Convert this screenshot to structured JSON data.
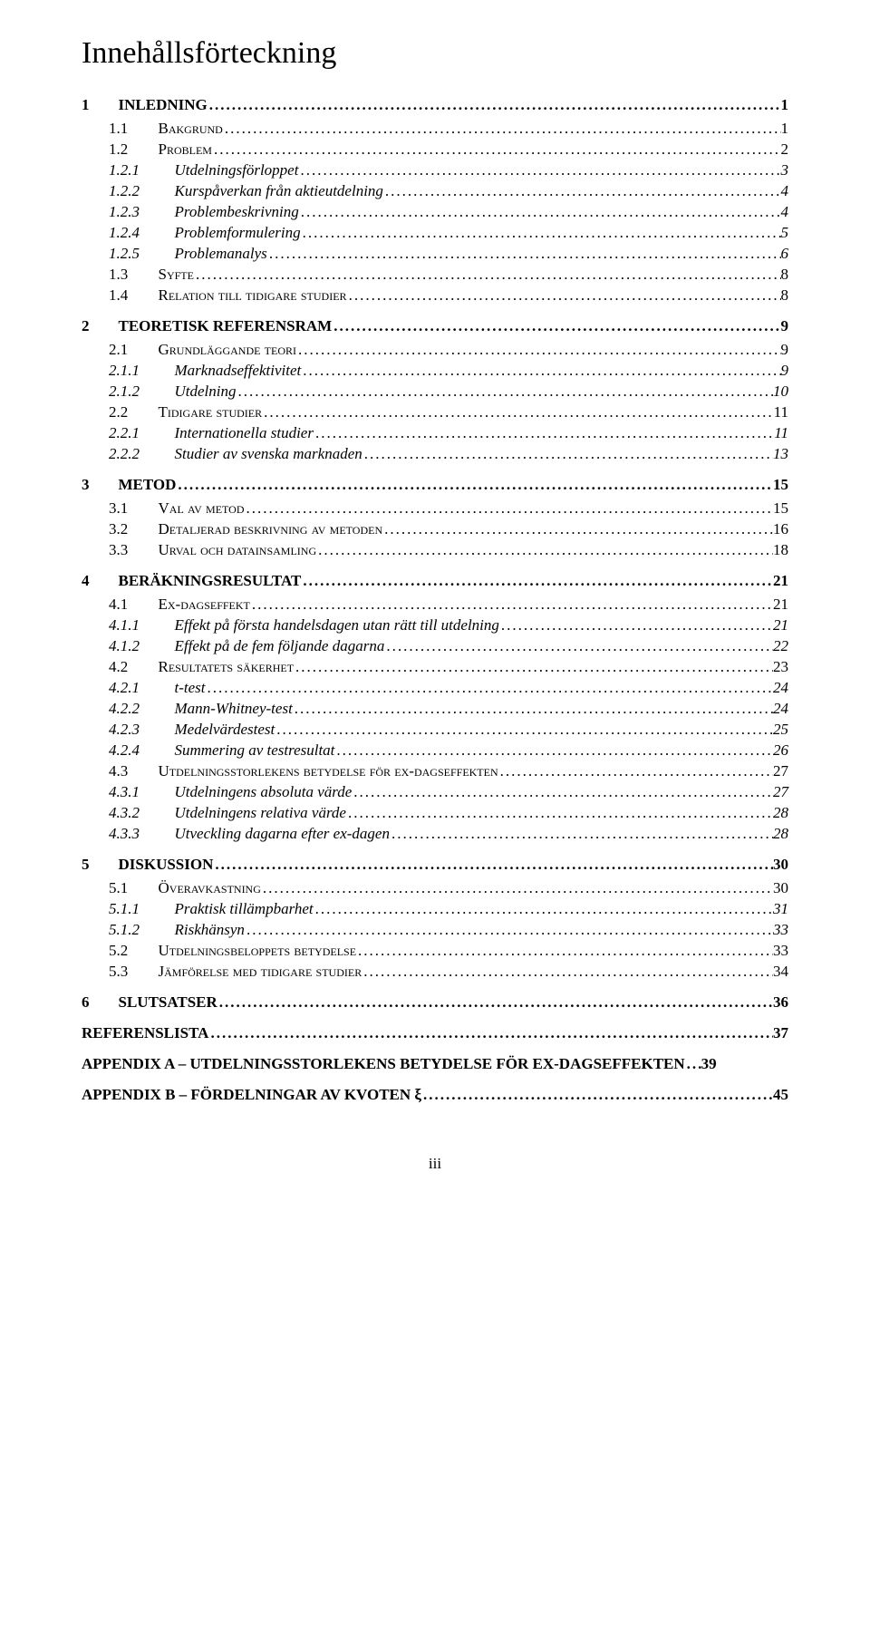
{
  "title": "Innehållsförteckning",
  "page_number_label": "iii",
  "entries": [
    {
      "level": 1,
      "num": "1",
      "label": "INLEDNING",
      "page": "1"
    },
    {
      "level": 2,
      "num": "1.1",
      "label": "Bakgrund",
      "page": "1"
    },
    {
      "level": 2,
      "num": "1.2",
      "label": "Problem",
      "page": "2"
    },
    {
      "level": 3,
      "num": "1.2.1",
      "label": "Utdelningsförloppet",
      "page": "3"
    },
    {
      "level": 3,
      "num": "1.2.2",
      "label": "Kurspåverkan från aktieutdelning",
      "page": "4"
    },
    {
      "level": 3,
      "num": "1.2.3",
      "label": "Problembeskrivning",
      "page": "4"
    },
    {
      "level": 3,
      "num": "1.2.4",
      "label": "Problemformulering",
      "page": "5"
    },
    {
      "level": 3,
      "num": "1.2.5",
      "label": "Problemanalys",
      "page": "6"
    },
    {
      "level": 2,
      "num": "1.3",
      "label": "Syfte",
      "page": "8"
    },
    {
      "level": 2,
      "num": "1.4",
      "label": "Relation till tidigare studier",
      "page": "8"
    },
    {
      "level": 1,
      "num": "2",
      "label": "TEORETISK REFERENSRAM",
      "page": "9"
    },
    {
      "level": 2,
      "num": "2.1",
      "label": "Grundläggande teori",
      "page": "9"
    },
    {
      "level": 3,
      "num": "2.1.1",
      "label": "Marknadseffektivitet",
      "page": "9"
    },
    {
      "level": 3,
      "num": "2.1.2",
      "label": "Utdelning",
      "page": "10"
    },
    {
      "level": 2,
      "num": "2.2",
      "label": "Tidigare studier",
      "page": "11"
    },
    {
      "level": 3,
      "num": "2.2.1",
      "label": "Internationella studier",
      "page": "11"
    },
    {
      "level": 3,
      "num": "2.2.2",
      "label": "Studier av svenska marknaden",
      "page": "13"
    },
    {
      "level": 1,
      "num": "3",
      "label": "METOD",
      "page": "15"
    },
    {
      "level": 2,
      "num": "3.1",
      "label": "Val av metod",
      "page": "15"
    },
    {
      "level": 2,
      "num": "3.2",
      "label": "Detaljerad beskrivning av metoden",
      "page": "16"
    },
    {
      "level": 2,
      "num": "3.3",
      "label": "Urval och datainsamling",
      "page": "18"
    },
    {
      "level": 1,
      "num": "4",
      "label": "BERÄKNINGSRESULTAT",
      "page": "21"
    },
    {
      "level": 2,
      "num": "4.1",
      "label": "Ex-dagseffekt",
      "page": "21"
    },
    {
      "level": 3,
      "num": "4.1.1",
      "label": "Effekt på första handelsdagen utan rätt till utdelning",
      "page": "21"
    },
    {
      "level": 3,
      "num": "4.1.2",
      "label": "Effekt på de fem följande dagarna",
      "page": "22"
    },
    {
      "level": 2,
      "num": "4.2",
      "label": "Resultatets säkerhet",
      "page": "23"
    },
    {
      "level": 3,
      "num": "4.2.1",
      "label": "t-test",
      "page": "24"
    },
    {
      "level": 3,
      "num": "4.2.2",
      "label": "Mann-Whitney-test",
      "page": "24"
    },
    {
      "level": 3,
      "num": "4.2.3",
      "label": "Medelvärdestest",
      "page": "25"
    },
    {
      "level": 3,
      "num": "4.2.4",
      "label": "Summering av testresultat",
      "page": "26"
    },
    {
      "level": 2,
      "num": "4.3",
      "label": "Utdelningsstorlekens betydelse för ex-dagseffekten",
      "page": "27"
    },
    {
      "level": 3,
      "num": "4.3.1",
      "label": "Utdelningens absoluta värde",
      "page": "27"
    },
    {
      "level": 3,
      "num": "4.3.2",
      "label": "Utdelningens relativa värde",
      "page": "28"
    },
    {
      "level": 3,
      "num": "4.3.3",
      "label": "Utveckling dagarna efter ex-dagen",
      "page": "28"
    },
    {
      "level": 1,
      "num": "5",
      "label": "DISKUSSION",
      "page": "30"
    },
    {
      "level": 2,
      "num": "5.1",
      "label": "Överavkastning",
      "page": "30"
    },
    {
      "level": 3,
      "num": "5.1.1",
      "label": "Praktisk tillämpbarhet",
      "page": "31"
    },
    {
      "level": 3,
      "num": "5.1.2",
      "label": "Riskhänsyn",
      "page": "33"
    },
    {
      "level": 2,
      "num": "5.2",
      "label": "Utdelningsbeloppets betydelse",
      "page": "33"
    },
    {
      "level": 2,
      "num": "5.3",
      "label": "Jämförelse med tidigare studier",
      "page": "34"
    },
    {
      "level": 1,
      "num": "6",
      "label": "SLUTSATSER",
      "page": "36"
    },
    {
      "level": 1,
      "num": "",
      "label": "REFERENSLISTA",
      "page": "37"
    },
    {
      "level": 1,
      "num": "",
      "label": "APPENDIX A – UTDELNINGSSTORLEKENS BETYDELSE FÖR EX-DAGSEFFEKTEN",
      "page": "39",
      "tight": true
    },
    {
      "level": 1,
      "num": "",
      "label": "APPENDIX B – FÖRDELNINGAR AV KVOTEN ξ",
      "page": "45"
    }
  ]
}
